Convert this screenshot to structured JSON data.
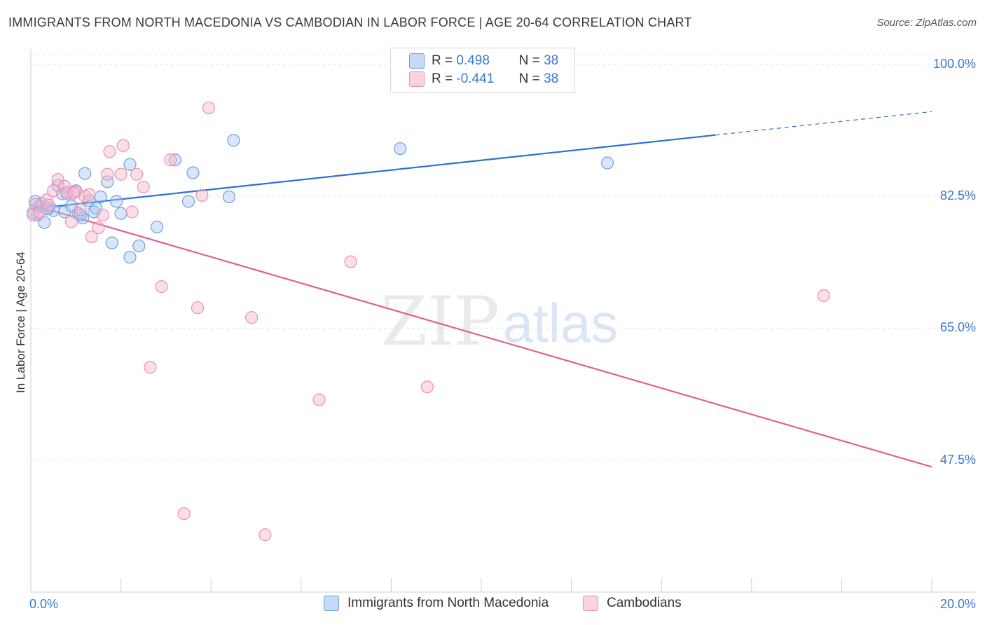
{
  "title": "IMMIGRANTS FROM NORTH MACEDONIA VS CAMBODIAN IN LABOR FORCE | AGE 20-64 CORRELATION CHART",
  "source": "Source: ZipAtlas.com",
  "watermark": {
    "zip": "ZIP",
    "atlas": "atlas"
  },
  "legend_stats": [
    {
      "r_label": "R =",
      "r_value": "0.498",
      "n_label": "N =",
      "n_value": "38",
      "color": "#a9c8f0"
    },
    {
      "r_label": "R =",
      "r_value": "-0.441",
      "n_label": "N =",
      "n_value": "38",
      "color": "#f6b8cc"
    }
  ],
  "legend_bottom": [
    {
      "label": "Immigrants from North Macedonia",
      "color": "#a9c8f0"
    },
    {
      "label": "Cambodians",
      "color": "#f6b8cc"
    }
  ],
  "chart_data": {
    "type": "scatter",
    "ylabel": "In Labor Force | Age 20-64",
    "xlim": [
      0,
      20
    ],
    "ylim": [
      30,
      102
    ],
    "x_tick_labels": [
      "0.0%",
      "20.0%"
    ],
    "y_ticks": [
      47.5,
      65.0,
      82.5,
      100.0
    ],
    "y_tick_labels": [
      "47.5%",
      "65.0%",
      "82.5%",
      "100.0%"
    ],
    "grid": true,
    "series": [
      {
        "name": "Immigrants from North Macedonia",
        "color": "#6fa0e0",
        "fill": "#a9c8f0",
        "trend_color": "#2f6fd0",
        "trend": {
          "x0": 0.0,
          "y0": 80.8,
          "x1": 15.2,
          "y1": 90.6,
          "x_dash_end": 20.0,
          "y_dash_end": 93.7
        },
        "points": [
          [
            0.1,
            81.8
          ],
          [
            0.15,
            80.0
          ],
          [
            0.2,
            81.2
          ],
          [
            0.25,
            81.5
          ],
          [
            0.3,
            79.0
          ],
          [
            0.4,
            80.9
          ],
          [
            0.5,
            80.6
          ],
          [
            0.6,
            83.9
          ],
          [
            0.7,
            82.8
          ],
          [
            0.75,
            80.4
          ],
          [
            0.8,
            83.0
          ],
          [
            0.9,
            81.2
          ],
          [
            1.0,
            83.2
          ],
          [
            1.05,
            80.2
          ],
          [
            1.15,
            79.6
          ],
          [
            1.2,
            85.5
          ],
          [
            1.3,
            81.9
          ],
          [
            1.4,
            80.4
          ],
          [
            1.45,
            80.9
          ],
          [
            1.55,
            82.4
          ],
          [
            1.7,
            84.4
          ],
          [
            1.8,
            76.3
          ],
          [
            1.9,
            81.8
          ],
          [
            2.0,
            80.2
          ],
          [
            2.2,
            74.4
          ],
          [
            2.2,
            86.7
          ],
          [
            2.4,
            75.9
          ],
          [
            2.8,
            78.4
          ],
          [
            3.2,
            87.3
          ],
          [
            3.5,
            81.8
          ],
          [
            3.6,
            85.6
          ],
          [
            4.4,
            82.4
          ],
          [
            4.5,
            89.9
          ],
          [
            8.2,
            88.8
          ],
          [
            12.8,
            86.9
          ],
          [
            0.05,
            80.3
          ],
          [
            0.35,
            80.8
          ],
          [
            1.1,
            80.0
          ]
        ]
      },
      {
        "name": "Cambodians",
        "color": "#ee8fb0",
        "fill": "#f6b8cc",
        "trend_color": "#e06090",
        "trend": {
          "x0": 0.0,
          "y0": 81.4,
          "x1": 20.0,
          "y1": 46.6
        },
        "points": [
          [
            0.05,
            80.0
          ],
          [
            0.1,
            81.4
          ],
          [
            0.2,
            80.3
          ],
          [
            0.35,
            82.0
          ],
          [
            0.4,
            81.3
          ],
          [
            0.5,
            83.2
          ],
          [
            0.6,
            84.7
          ],
          [
            0.75,
            83.8
          ],
          [
            0.8,
            82.8
          ],
          [
            0.9,
            79.1
          ],
          [
            1.0,
            83.1
          ],
          [
            1.1,
            80.7
          ],
          [
            1.2,
            82.5
          ],
          [
            1.3,
            82.7
          ],
          [
            1.35,
            77.1
          ],
          [
            1.5,
            78.3
          ],
          [
            1.6,
            80.0
          ],
          [
            1.7,
            85.4
          ],
          [
            1.75,
            88.4
          ],
          [
            2.0,
            85.4
          ],
          [
            2.05,
            89.2
          ],
          [
            2.25,
            80.4
          ],
          [
            2.35,
            85.4
          ],
          [
            2.5,
            83.7
          ],
          [
            2.65,
            59.8
          ],
          [
            2.9,
            70.5
          ],
          [
            3.1,
            87.3
          ],
          [
            3.4,
            40.4
          ],
          [
            3.7,
            67.7
          ],
          [
            3.8,
            82.6
          ],
          [
            3.95,
            94.2
          ],
          [
            4.9,
            66.4
          ],
          [
            5.2,
            37.6
          ],
          [
            6.4,
            55.5
          ],
          [
            7.1,
            73.8
          ],
          [
            8.8,
            57.2
          ],
          [
            17.6,
            69.3
          ],
          [
            0.95,
            82.9
          ]
        ]
      }
    ]
  }
}
